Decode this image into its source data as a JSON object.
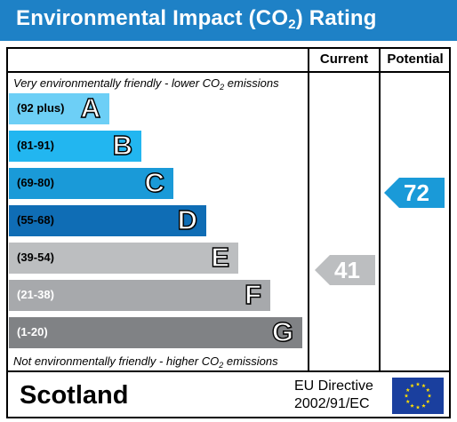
{
  "header": {
    "title_pre": "Environmental Impact (CO",
    "title_sub": "2",
    "title_post": ") Rating",
    "background": "#1e81c6"
  },
  "columns": {
    "current": "Current",
    "potential": "Potential"
  },
  "notes": {
    "top_pre": "Very environmentally friendly - lower CO",
    "top_sub": "2",
    "top_post": " emissions",
    "bottom_pre": "Not environmentally friendly - higher CO",
    "bottom_sub": "2",
    "bottom_post": " emissions"
  },
  "bands": [
    {
      "range": "(92 plus)",
      "letter": "A",
      "color": "#6dcff6",
      "text_color": "#000000"
    },
    {
      "range": "(81-91)",
      "letter": "B",
      "color": "#22b6f0",
      "text_color": "#000000"
    },
    {
      "range": "(69-80)",
      "letter": "C",
      "color": "#1a9ad8",
      "text_color": "#000000"
    },
    {
      "range": "(55-68)",
      "letter": "D",
      "color": "#0f6db5",
      "text_color": "#000000"
    },
    {
      "range": "(39-54)",
      "letter": "E",
      "color": "#bcbec0",
      "text_color": "#000000"
    },
    {
      "range": "(21-38)",
      "letter": "F",
      "color": "#a7a9ac",
      "text_color": "#ffffff"
    },
    {
      "range": "(1-20)",
      "letter": "G",
      "color": "#808285",
      "text_color": "#ffffff"
    }
  ],
  "ratings": {
    "current": {
      "value": "41",
      "color": "#bcbec0"
    },
    "potential": {
      "value": "72",
      "color": "#1a9ad8"
    }
  },
  "footer": {
    "country": "Scotland",
    "directive_line1": "EU Directive",
    "directive_line2": "2002/91/EC",
    "flag_color": "#1a3f9e",
    "star_color": "#ffde00"
  }
}
